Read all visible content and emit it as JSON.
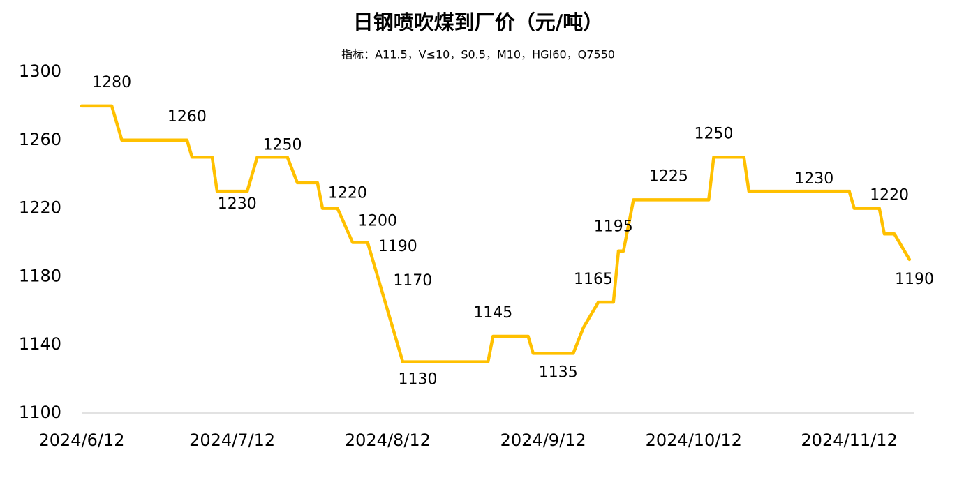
{
  "chart_data": {
    "type": "line",
    "title": "日钢喷吹煤到厂价（元/吨）",
    "subtitle": "指标：A11.5，V≤10，S0.5，M10，HGI60，Q7550",
    "x": [
      "2024/6/12",
      "2024/6/18",
      "2024/6/20",
      "2024/7/3",
      "2024/7/4",
      "2024/7/8",
      "2024/7/9",
      "2024/7/15",
      "2024/7/17",
      "2024/7/23",
      "2024/7/25",
      "2024/7/29",
      "2024/7/30",
      "2024/8/2",
      "2024/8/5",
      "2024/8/8",
      "2024/8/9",
      "2024/8/11",
      "2024/8/13",
      "2024/8/15",
      "2024/9/1",
      "2024/9/2",
      "2024/9/9",
      "2024/9/10",
      "2024/9/18",
      "2024/9/20",
      "2024/9/23",
      "2024/9/26",
      "2024/9/27",
      "2024/9/28",
      "2024/9/30",
      "2024/10/15",
      "2024/10/16",
      "2024/10/22",
      "2024/10/23",
      "2024/11/12",
      "2024/11/13",
      "2024/11/18",
      "2024/11/19",
      "2024/11/21",
      "2024/11/24"
    ],
    "series": [
      {
        "name": "日钢喷吹煤到厂价",
        "color": "#ffc000",
        "values": [
          1280,
          1280,
          1260,
          1260,
          1250,
          1250,
          1230,
          1230,
          1250,
          1250,
          1235,
          1235,
          1220,
          1220,
          1200,
          1200,
          1190,
          1170,
          1150,
          1130,
          1130,
          1145,
          1145,
          1135,
          1135,
          1150,
          1165,
          1165,
          1195,
          1195,
          1225,
          1225,
          1250,
          1250,
          1230,
          1230,
          1220,
          1220,
          1205,
          1205,
          1190
        ]
      }
    ],
    "annotations": [
      {
        "x": "2024/6/18",
        "value": 1280
      },
      {
        "x": "2024/7/3",
        "value": 1260
      },
      {
        "x": "2024/7/13",
        "value": 1230
      },
      {
        "x": "2024/7/22",
        "value": 1250
      },
      {
        "x": "2024/8/4",
        "value": 1220
      },
      {
        "x": "2024/8/10",
        "value": 1200
      },
      {
        "x": "2024/8/14",
        "value": 1190
      },
      {
        "x": "2024/8/17",
        "value": 1170
      },
      {
        "x": "2024/8/18",
        "value": 1130
      },
      {
        "x": "2024/9/2",
        "value": 1145
      },
      {
        "x": "2024/9/15",
        "value": 1135
      },
      {
        "x": "2024/9/22",
        "value": 1165
      },
      {
        "x": "2024/9/26",
        "value": 1195
      },
      {
        "x": "2024/10/7",
        "value": 1225
      },
      {
        "x": "2024/10/16",
        "value": 1250
      },
      {
        "x": "2024/11/5",
        "value": 1230
      },
      {
        "x": "2024/11/20",
        "value": 1220
      },
      {
        "x": "2024/11/25",
        "value": 1190
      }
    ],
    "xlim": [
      "2024/6/12",
      "2024/11/25"
    ],
    "xticks": [
      "2024/6/12",
      "2024/7/12",
      "2024/8/12",
      "2024/9/12",
      "2024/10/12",
      "2024/11/12"
    ],
    "ylim": [
      1100,
      1300
    ],
    "yticks": [
      1100,
      1140,
      1180,
      1220,
      1260,
      1300
    ],
    "grid": false
  }
}
